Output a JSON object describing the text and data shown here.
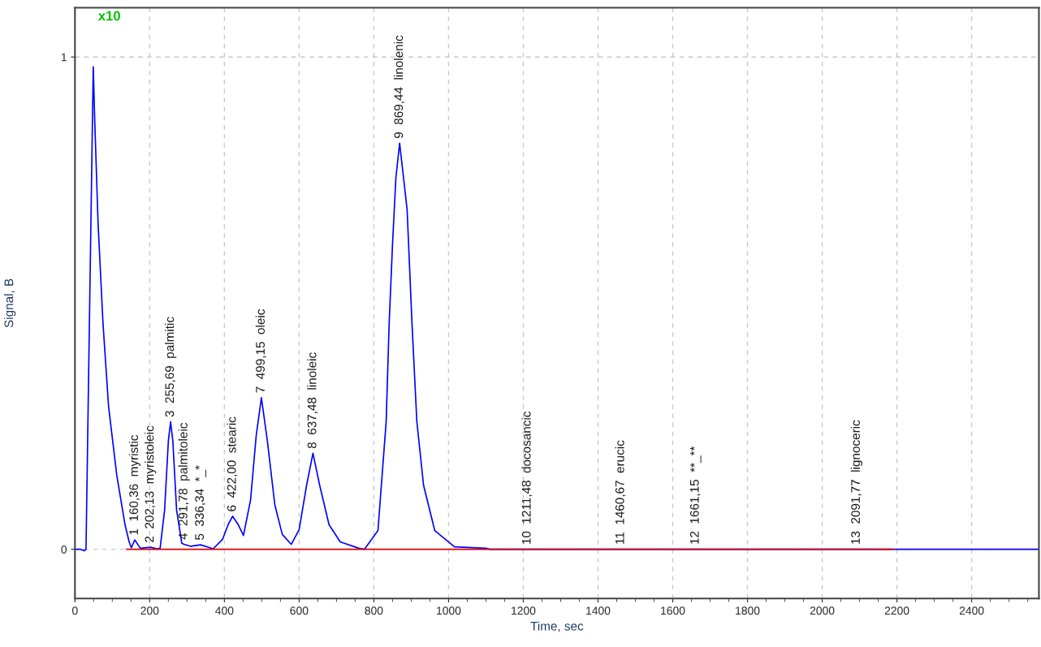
{
  "chart_data": {
    "type": "line",
    "xlabel": "Time, sec",
    "ylabel": "Signal, B",
    "xlim": [
      0,
      2580
    ],
    "ylim": [
      -0.1,
      1.1
    ],
    "xticks": [
      0,
      200,
      400,
      600,
      800,
      1000,
      1200,
      1400,
      1600,
      1800,
      2000,
      2200,
      2400
    ],
    "yticks": [
      0,
      1
    ],
    "grid": true,
    "legend": false,
    "marker": "none",
    "line_style": "solid",
    "series": [
      {
        "color": "#0000ff",
        "x": [
          0,
          14,
          25,
          29.6,
          31,
          48.3,
          49,
          53,
          62,
          75,
          90,
          112,
          134,
          145,
          151,
          160,
          175,
          202,
          220,
          228,
          240,
          250,
          256,
          262,
          272,
          286,
          292,
          310,
          336,
          370,
          395,
          410,
          422,
          437,
          451,
          470,
          485,
          499,
          515,
          535,
          555,
          579,
          600,
          620,
          637,
          655,
          680,
          710,
          760,
          775,
          811,
          833,
          841,
          850,
          859,
          869,
          889,
          902,
          915,
          933,
          963,
          1016,
          1100,
          1110,
          2580
        ],
        "values": [
          0,
          0,
          -0.003,
          0,
          null,
          null,
          0.98,
          0.87,
          0.66,
          0.46,
          0.29,
          0.15,
          0.05,
          0.015,
          0.003,
          0.019,
          0.002,
          0.004,
          0.001,
          0.002,
          0.08,
          0.22,
          0.259,
          0.22,
          0.08,
          0.012,
          0.01,
          0.006,
          0.009,
          0.001,
          0.02,
          0.05,
          0.067,
          0.05,
          0.028,
          0.1,
          0.23,
          0.308,
          0.22,
          0.09,
          0.03,
          0.01,
          0.04,
          0.13,
          0.195,
          0.13,
          0.05,
          0.015,
          0.002,
          0,
          0.038,
          0.26,
          0.46,
          0.62,
          0.755,
          0.825,
          0.69,
          0.46,
          0.26,
          0.13,
          0.038,
          0.005,
          0.002,
          0,
          0
        ]
      },
      {
        "color": "#e00000",
        "x": [
          138,
          2192
        ],
        "values": [
          0,
          0
        ]
      }
    ],
    "annotations": [
      "x10",
      {
        "text": "1  160,36  myristic",
        "x": 160,
        "y": 0.019
      },
      {
        "text": "2  202,13  myristoleic",
        "x": 202,
        "y": 0.004
      },
      {
        "text": "3  255,69  palmitic",
        "x": 256,
        "y": 0.259
      },
      {
        "text": "4  291,78  palmitoleic",
        "x": 292,
        "y": 0.01
      },
      {
        "text": "5  336,34  *_*",
        "x": 336,
        "y": 0.009
      },
      {
        "text": "6  422,00  stearic",
        "x": 422,
        "y": 0.067
      },
      {
        "text": "7  499,15  oleic",
        "x": 499,
        "y": 0.308
      },
      {
        "text": "8  637,48  linoleic",
        "x": 637,
        "y": 0.195
      },
      {
        "text": "9  869,44  linolenic",
        "x": 869,
        "y": 0.825
      },
      {
        "text": "10  1211,48  docosancic",
        "x": 1211,
        "y": 0
      },
      {
        "text": "11  1460,67  erucic",
        "x": 1461,
        "y": 0
      },
      {
        "text": "12  1661,15  **_**",
        "x": 1661,
        "y": 0
      },
      {
        "text": "13  2091,77  lignoceric",
        "x": 2092,
        "y": 0
      }
    ]
  }
}
